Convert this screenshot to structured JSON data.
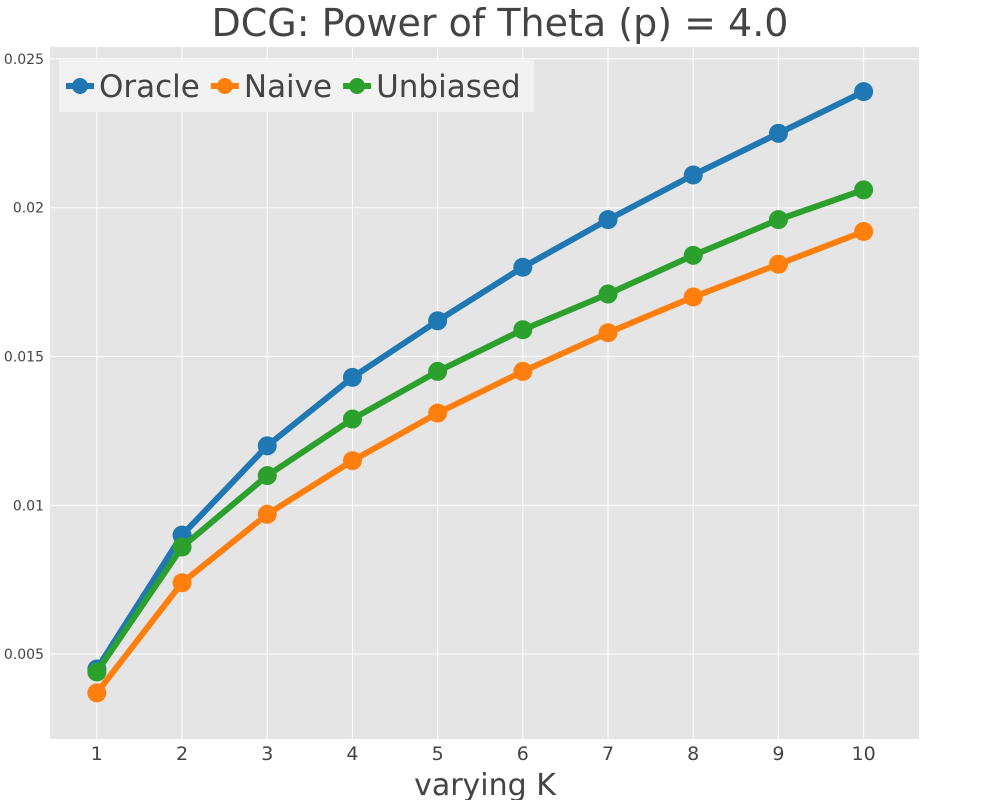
{
  "chart_data": {
    "type": "line",
    "title": "DCG: Power of Theta (p) = 4.0",
    "xlabel": "varying K",
    "ylabel": "",
    "x": [
      1,
      2,
      3,
      4,
      5,
      6,
      7,
      8,
      9,
      10
    ],
    "xlim": [
      0.45,
      10.65
    ],
    "ylim": [
      0.00215,
      0.0254
    ],
    "y_ticks": [
      0.005,
      0.01,
      0.015,
      0.02,
      0.025
    ],
    "y_tick_labels": [
      "0.005",
      "0.01",
      "0.015",
      "0.02",
      "0.025"
    ],
    "grid": true,
    "legend_position": "top-left",
    "series": [
      {
        "name": "Oracle",
        "color": "#1f77b4",
        "values": [
          0.0045,
          0.009,
          0.012,
          0.0143,
          0.0162,
          0.018,
          0.0196,
          0.0211,
          0.0225,
          0.0239
        ]
      },
      {
        "name": "Naive",
        "color": "#ff7f0e",
        "values": [
          0.0037,
          0.0074,
          0.0097,
          0.0115,
          0.0131,
          0.0145,
          0.0158,
          0.017,
          0.0181,
          0.0192
        ]
      },
      {
        "name": "Unbiased",
        "color": "#2ca02c",
        "values": [
          0.0044,
          0.0086,
          0.011,
          0.0129,
          0.0145,
          0.0159,
          0.0171,
          0.0184,
          0.0196,
          0.0206
        ]
      }
    ]
  },
  "colors": {
    "plot_background": "#e5e5e5",
    "grid": "#ffffff",
    "legend_background": "#f2f2f2",
    "title_text": "#444444"
  }
}
